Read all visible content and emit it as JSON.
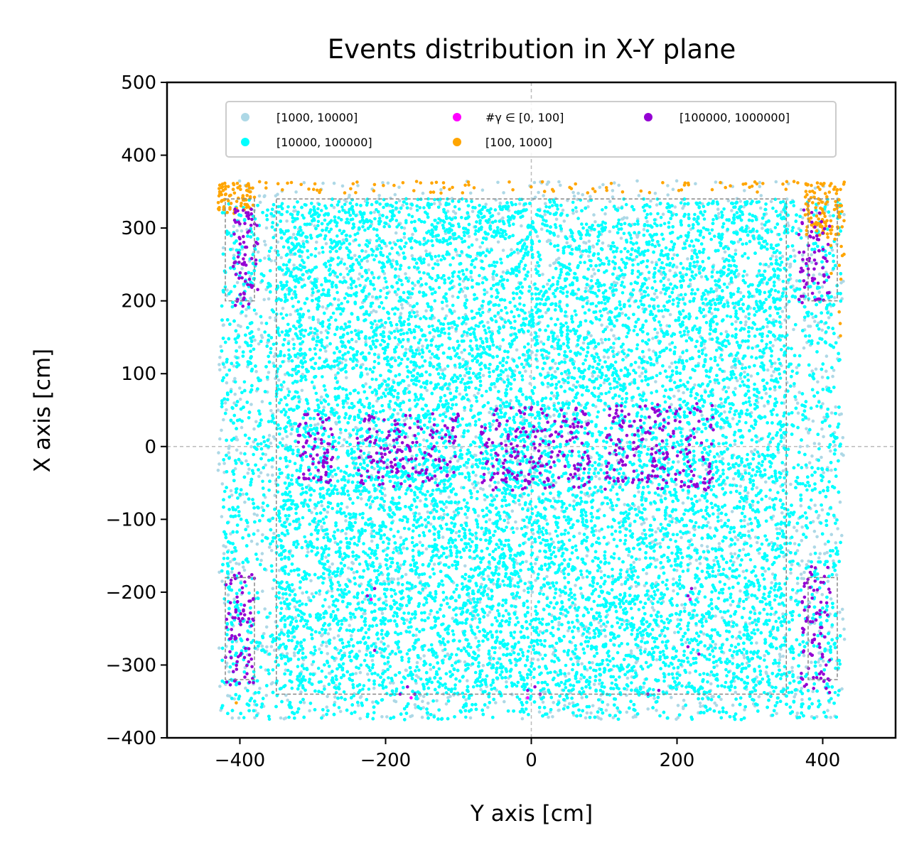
{
  "chart_data": {
    "type": "scatter",
    "title": "Events distribution in X-Y plane",
    "xlabel": "Y axis [cm]",
    "ylabel": "X axis [cm]",
    "xlim": [
      -500,
      500
    ],
    "ylim": [
      -400,
      500
    ],
    "xticks": [
      -400,
      -200,
      0,
      200,
      400
    ],
    "yticks": [
      -400,
      -300,
      -200,
      -100,
      0,
      100,
      200,
      300,
      400,
      500
    ],
    "xtick_labels": [
      "−400",
      "−200",
      "0",
      "200",
      "400"
    ],
    "ytick_labels": [
      "−400",
      "−300",
      "−200",
      "−100",
      "0",
      "100",
      "200",
      "300",
      "400",
      "500"
    ],
    "grid": false,
    "zero_lines": true,
    "legend_position": "top",
    "inner_box": {
      "x": [
        -350,
        350
      ],
      "y": [
        -340,
        340
      ]
    },
    "side_boxes": [
      {
        "x": [
          -420,
          -380
        ],
        "y": [
          200,
          340
        ]
      },
      {
        "x": [
          380,
          420
        ],
        "y": [
          200,
          340
        ]
      },
      {
        "x": [
          -420,
          -380
        ],
        "y": [
          -320,
          -180
        ]
      },
      {
        "x": [
          380,
          420
        ],
        "y": [
          -320,
          -180
        ]
      }
    ],
    "series": [
      {
        "name": "[1000, 10000]",
        "color": "#add8e6",
        "regions": [
          {
            "x": [
              -430,
              430
            ],
            "y": [
              -375,
              365
            ],
            "n": 2600
          }
        ]
      },
      {
        "name": "[10000, 100000]",
        "color": "#00ffff",
        "regions": [
          {
            "x": [
              -425,
              425
            ],
            "y": [
              -375,
              340
            ],
            "n": 14000
          },
          {
            "x": [
              -350,
              350
            ],
            "y": [
              -340,
              340
            ],
            "n": 6000
          }
        ]
      },
      {
        "name": "#γ ∈ [0, 100]",
        "color": "#ff00ff",
        "points": [
          [
            -220,
            -210
          ],
          [
            -165,
            -345
          ],
          [
            -5,
            -345
          ],
          [
            218,
            -210
          ]
        ]
      },
      {
        "name": "[100, 1000]",
        "color": "#ffa500",
        "regions": [
          {
            "x": [
              -430,
              430
            ],
            "y": [
              348,
              364
            ],
            "n": 90
          },
          {
            "x": [
              -430,
              -380
            ],
            "y": [
              320,
              362
            ],
            "n": 80
          },
          {
            "x": [
              375,
              430
            ],
            "y": [
              290,
              362
            ],
            "n": 110
          },
          {
            "x": [
              405,
              430
            ],
            "y": [
              150,
              290
            ],
            "n": 12
          }
        ],
        "points": [
          [
            -405,
            -352
          ],
          [
            -220,
            -210
          ]
        ]
      },
      {
        "name": "[100000, 1000000]",
        "color": "#9400d3",
        "regions": [
          {
            "x": [
              -410,
              -375
            ],
            "y": [
              190,
              330
            ],
            "n": 70
          },
          {
            "x": [
              365,
              410
            ],
            "y": [
              195,
              330
            ],
            "n": 70
          },
          {
            "x": [
              -420,
              -380
            ],
            "y": [
              -330,
              -170
            ],
            "n": 80
          },
          {
            "x": [
              370,
              410
            ],
            "y": [
              -345,
              -165
            ],
            "n": 80
          },
          {
            "x": [
              -320,
              -270
            ],
            "y": [
              -50,
              45
            ],
            "n": 70
          },
          {
            "x": [
              -240,
              -100
            ],
            "y": [
              -55,
              45
            ],
            "n": 160
          },
          {
            "x": [
              -70,
              80
            ],
            "y": [
              -60,
              55
            ],
            "n": 200
          },
          {
            "x": [
              100,
              250
            ],
            "y": [
              -60,
              60
            ],
            "n": 200
          }
        ],
        "points": [
          [
            -225,
            -205
          ],
          [
            -215,
            -195
          ],
          [
            -215,
            -280
          ],
          [
            -180,
            -340
          ],
          [
            -170,
            -330
          ],
          [
            -160,
            -340
          ],
          [
            -5,
            -335
          ],
          [
            5,
            -330
          ],
          [
            12,
            -340
          ],
          [
            160,
            -340
          ],
          [
            175,
            -335
          ],
          [
            215,
            -205
          ],
          [
            220,
            -195
          ],
          [
            215,
            -275
          ],
          [
            230,
            -285
          ]
        ]
      }
    ]
  }
}
